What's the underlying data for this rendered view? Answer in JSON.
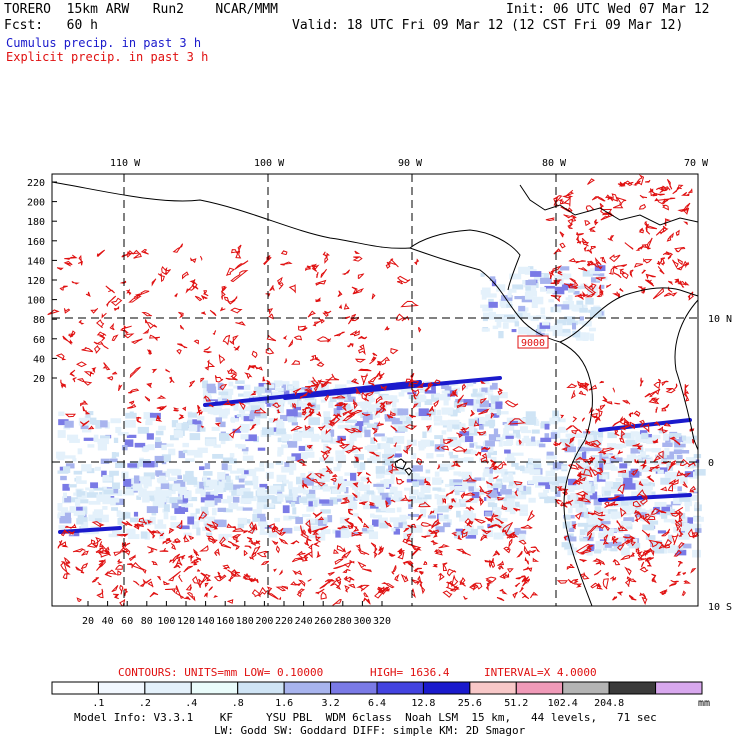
{
  "header": {
    "model": "TORERO  15km ARW   Run2    NCAR/MMM",
    "init": "Init: 06 UTC Wed 07 Mar 12",
    "fcst": "Fcst:   60 h",
    "valid": "Valid: 18 UTC Fri 09 Mar 12 (12 CST Fri 09 Mar 12)",
    "cumulus_label": "Cumulus precip. in past 3 h",
    "explicit_label": "Explicit precip. in past 3 h",
    "cumulus_color": "#1a1acc",
    "explicit_color": "#e01010"
  },
  "map": {
    "lon_labels": [
      "110 W",
      "100 W",
      "90 W",
      "80 W",
      "70 W"
    ],
    "lat_labels": [
      "10 N",
      "0",
      "10 S"
    ],
    "y_ticks": [
      "220",
      "200",
      "180",
      "160",
      "140",
      "120",
      "100",
      "80",
      "60",
      "40",
      "20"
    ],
    "x_ticks": [
      "20",
      "40",
      "60",
      "80",
      "100",
      "120",
      "140",
      "160",
      "180",
      "200",
      "220",
      "240",
      "260",
      "280",
      "300",
      "320"
    ],
    "max_label": "9000"
  },
  "contours_line": {
    "prefix": "CONTOURS:  UNITS=mm  LOW= 0.10000",
    "high": "HIGH=  1636.4",
    "interval": "INTERVAL=X  4.0000"
  },
  "colorbar": {
    "labels": [
      ".1",
      ".2",
      ".4",
      ".8",
      "1.6",
      "3.2",
      "6.4",
      "12.8",
      "25.6",
      "51.2",
      "102.4",
      "204.8"
    ],
    "units": "mm",
    "colors": [
      "#ffffff",
      "#f2f8ff",
      "#e4f1fb",
      "#eafcfb",
      "#cfe4f5",
      "#a8b4ee",
      "#7a7ae6",
      "#4343e0",
      "#1a1acc",
      "#f8c8c8",
      "#f09ab8",
      "#b4b4b4",
      "#3a3a3a",
      "#d8a8ee"
    ]
  },
  "footer": {
    "line1": "Model Info: V3.3.1    KF     YSU PBL  WDM 6class  Noah LSM  15 km,   44 levels,   71 sec",
    "line2": "LW: Godd SW: Goddard DIFF: simple KM: 2D Smagor"
  }
}
